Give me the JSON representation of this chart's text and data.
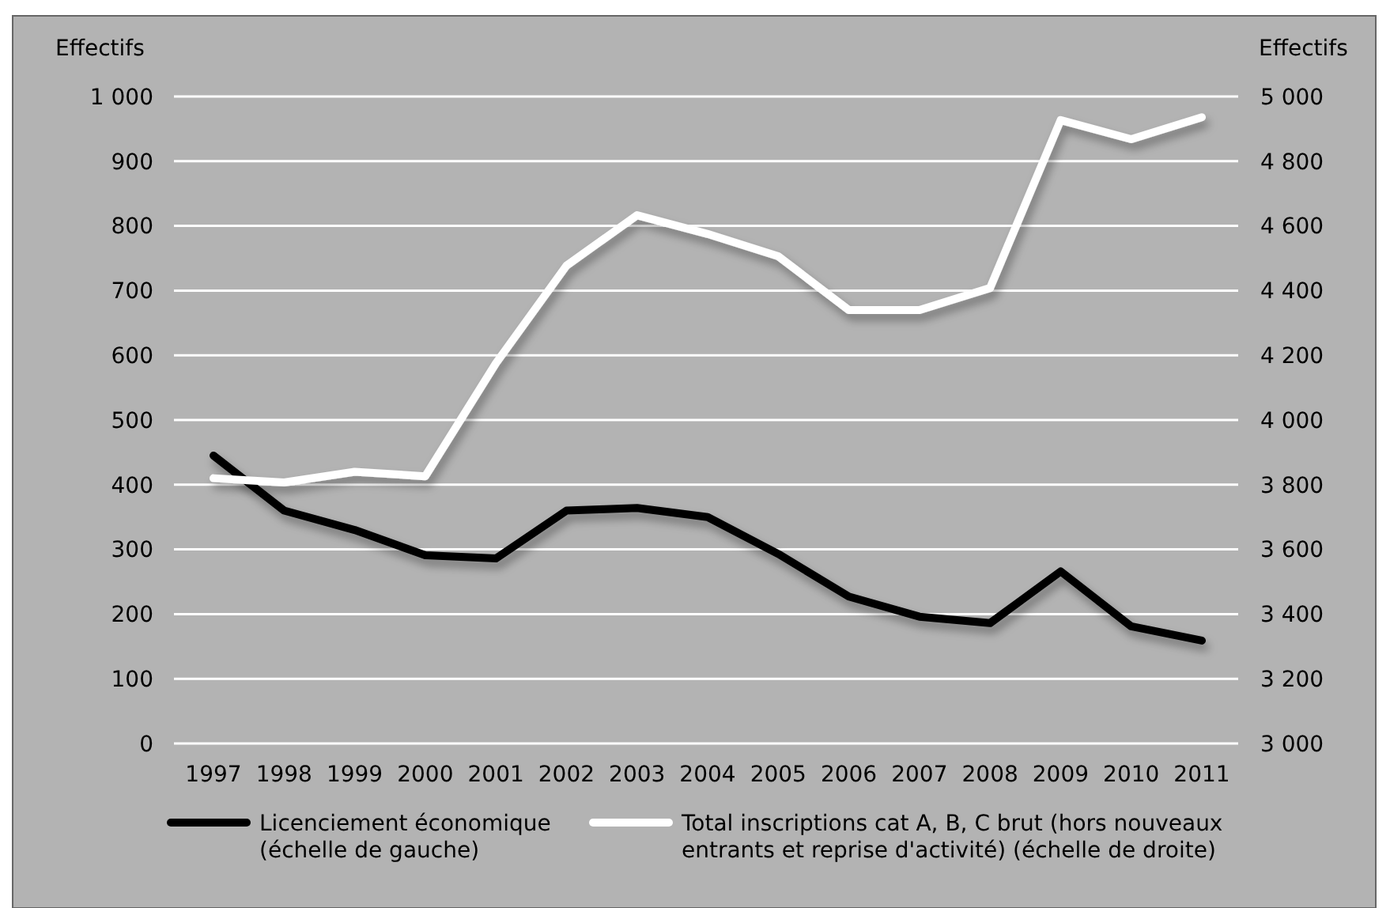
{
  "chart_data": {
    "type": "line",
    "xlabel": null,
    "ylabel": "Effectifs",
    "y2label": "Effectifs",
    "categories": [
      "1997",
      "1998",
      "1999",
      "2000",
      "2001",
      "2002",
      "2003",
      "2004",
      "2005",
      "2006",
      "2007",
      "2008",
      "2009",
      "2010",
      "2011"
    ],
    "series": [
      {
        "name": "Licenciement économique (échelle de gauche)",
        "color": "#000000",
        "values": [
          445,
          360,
          330,
          291,
          286,
          360,
          364,
          350,
          293,
          227,
          196,
          186,
          266,
          181,
          159
        ]
      },
      {
        "name": "Total inscriptions cat A, B, C brut (hors nouveaux entrants et reprise d'activité) (échelle de droite)",
        "color": "#ffffff",
        "axis": "y2",
        "values": [
          3820,
          3807,
          3840,
          3826,
          4175,
          4477,
          4633,
          4575,
          4506,
          4340,
          4340,
          4408,
          4927,
          4868,
          4936
        ]
      }
    ],
    "ylim": [
      0,
      1000
    ],
    "yticks": [
      0,
      {
        "value": 100,
        "label": "100"
      },
      {
        "value": 200,
        "label": "200"
      },
      {
        "value": 300,
        "label": "300"
      },
      {
        "value": 400,
        "label": "400"
      },
      {
        "value": 500,
        "label": "500"
      },
      {
        "value": 600,
        "label": "600"
      },
      {
        "value": 700,
        "label": "700"
      },
      {
        "value": 800,
        "label": "800"
      },
      {
        "value": 900,
        "label": "900"
      },
      {
        "value": 1000,
        "label": "1 000"
      }
    ],
    "y2lim": [
      3000,
      5000
    ],
    "y2ticks": [
      {
        "value": 3000,
        "label": "3 000"
      },
      {
        "value": 3200,
        "label": "3 200"
      },
      {
        "value": 3400,
        "label": "3 400"
      },
      {
        "value": 3600,
        "label": "3 600"
      },
      {
        "value": 3800,
        "label": "3 800"
      },
      {
        "value": 4000,
        "label": "4 000"
      },
      {
        "value": 4200,
        "label": "4 200"
      },
      {
        "value": 4400,
        "label": "4 400"
      },
      {
        "value": 4600,
        "label": "4 600"
      },
      {
        "value": 4800,
        "label": "4 800"
      },
      {
        "value": 5000,
        "label": "5 000"
      }
    ],
    "grid": "y",
    "legend": "bottom",
    "marker": "none",
    "line_style": "solid"
  }
}
